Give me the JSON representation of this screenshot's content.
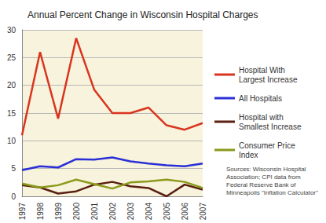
{
  "chart_data": {
    "type": "line",
    "title": "Annual Percent Change in Wisconsin Hospital Charges",
    "categories": [
      "1997",
      "1998",
      "1999",
      "2000",
      "2001",
      "2002",
      "2003",
      "2004",
      "2005",
      "2006",
      "2007"
    ],
    "series": [
      {
        "name": "Hospital With Largest Increase",
        "color": "#d9341e",
        "values": [
          11,
          26,
          14,
          28.5,
          19.2,
          15,
          15,
          16,
          12.8,
          12,
          13.2
        ]
      },
      {
        "name": "All Hospitals",
        "color": "#2b2fd6",
        "values": [
          4.7,
          5.4,
          5.2,
          6.7,
          6.6,
          7,
          6.3,
          5.9,
          5.6,
          5.4,
          5.9
        ]
      },
      {
        "name": "Hospital with Smallest Increase",
        "color": "#5a1f10",
        "values": [
          2,
          1.6,
          0.5,
          0.9,
          2.1,
          2.6,
          1.8,
          1.5,
          0,
          2.1,
          1.2
        ]
      },
      {
        "name": "Consumer Price Index",
        "color": "#8a9a1a",
        "values": [
          2.3,
          1.6,
          2,
          3,
          2.2,
          1.4,
          2.5,
          2.7,
          3,
          2.6,
          1.5
        ]
      }
    ],
    "ylim": [
      0,
      30
    ],
    "yticks": [
      0,
      5,
      10,
      15,
      20,
      25,
      30
    ],
    "grid": true,
    "legend": "right",
    "annotations": [
      "Sources: Wisconsin Hospital Association; CPI data from Federal Reserve Bank of Minneapolis \"Inflation Calculator\""
    ]
  }
}
